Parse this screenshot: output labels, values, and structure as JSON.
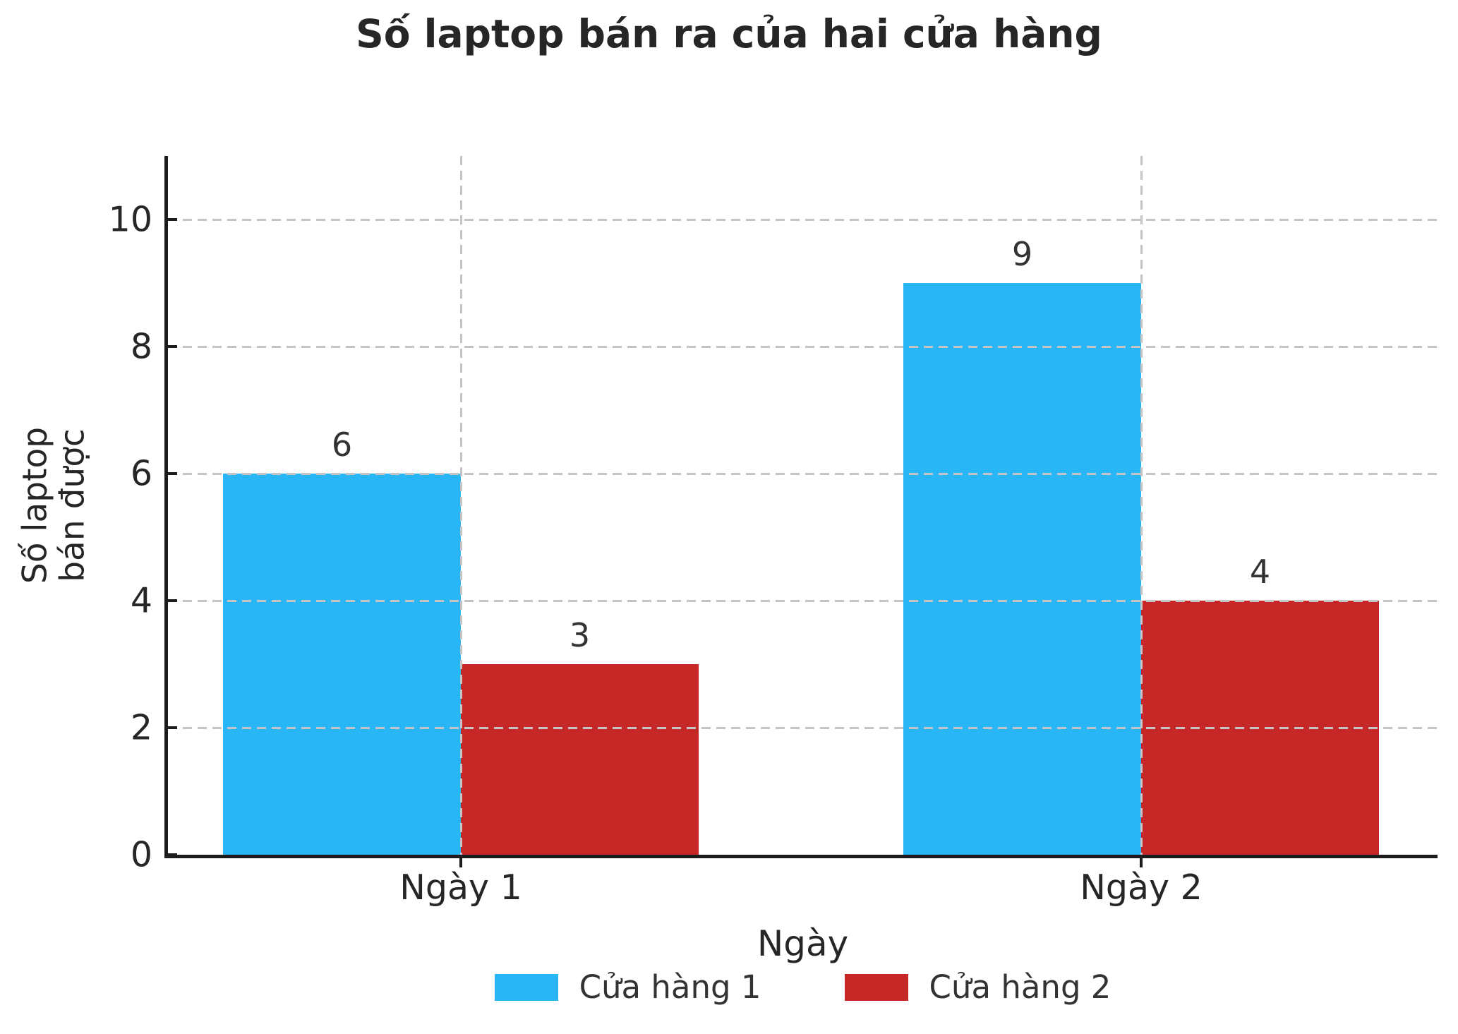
{
  "chart_data": {
    "type": "bar",
    "title": "Số laptop bán ra của hai cửa hàng",
    "xlabel": "Ngày",
    "ylabel": "Số laptop\nbán được",
    "categories": [
      "Ngày 1",
      "Ngày 2"
    ],
    "series": [
      {
        "name": "Cửa hàng 1",
        "color": "#29b6f6",
        "values": [
          6,
          9
        ]
      },
      {
        "name": "Cửa hàng 2",
        "color": "#c62828",
        "values": [
          3,
          4
        ]
      }
    ],
    "bar_value_labels": [
      [
        6,
        9
      ],
      [
        3,
        4
      ]
    ],
    "ylim": [
      0,
      11
    ],
    "yticks": [
      0,
      2,
      4,
      6,
      8,
      10
    ],
    "grid": true,
    "grid_style": "dashed",
    "legend_position": "bottom",
    "colors": {
      "series1": "#29b6f6",
      "series2": "#c62828",
      "text": "#262626",
      "value_label": "#333333",
      "grid": "#c4c4c4",
      "spine": "#1c1c1c",
      "background": "#ffffff"
    }
  }
}
